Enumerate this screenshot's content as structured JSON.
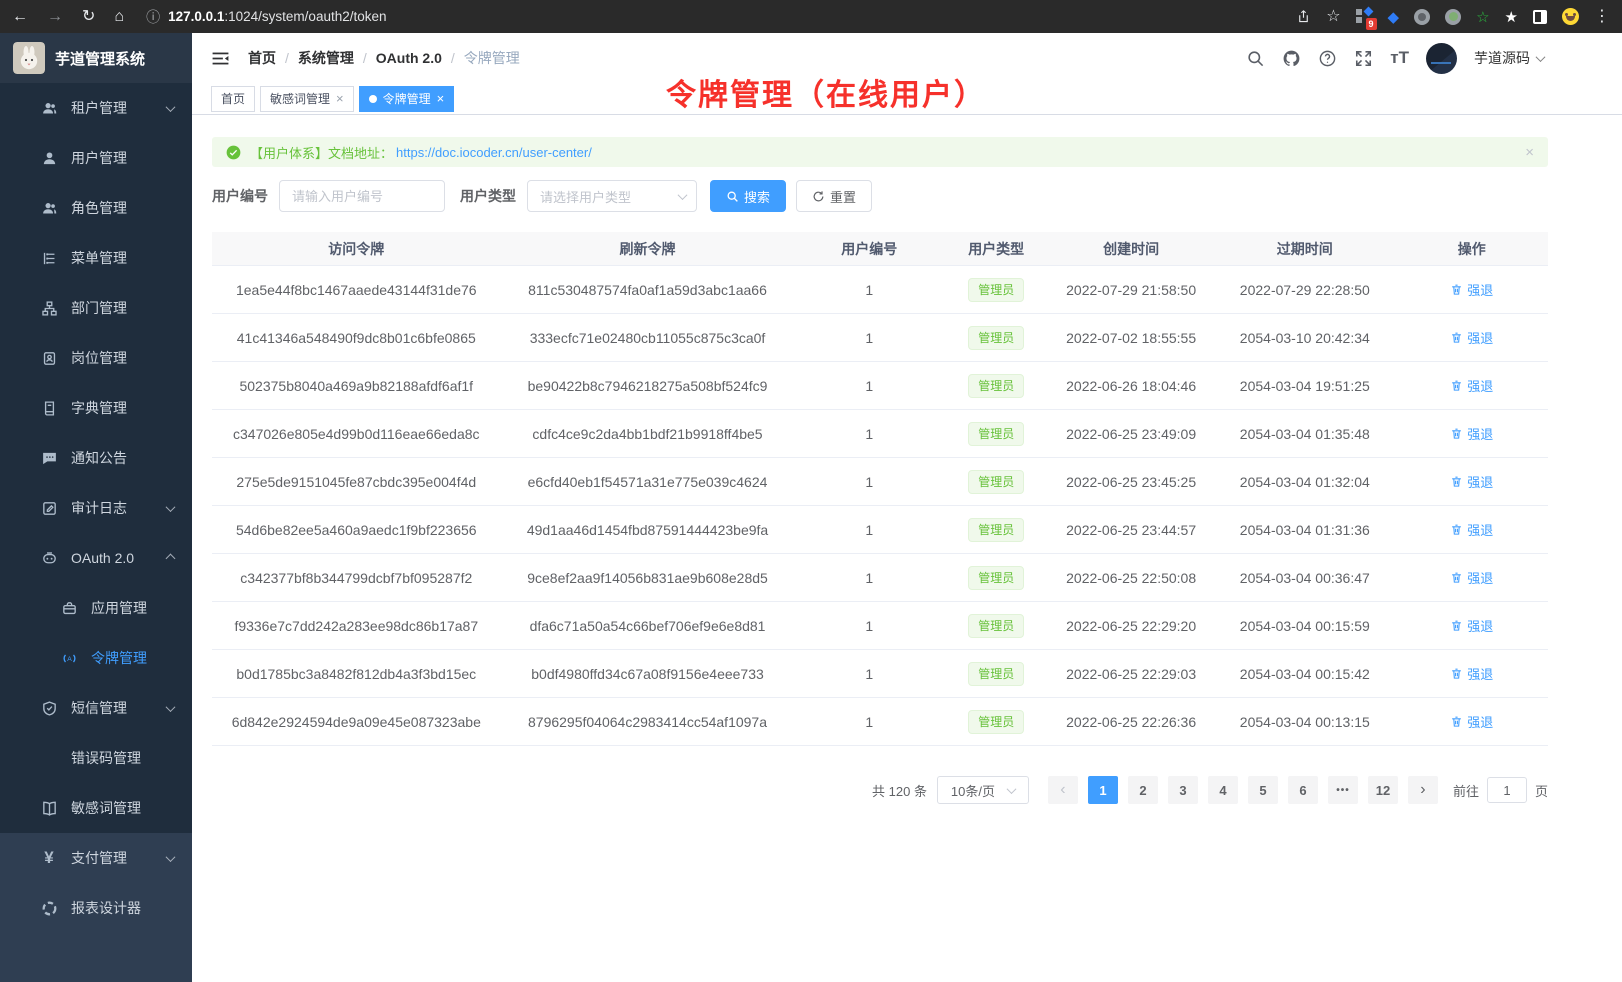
{
  "browser": {
    "url_host": "127.0.0.1",
    "url_rest": ":1024/system/oauth2/token",
    "extension_badge": "9"
  },
  "glyphs": {
    "back": "←",
    "forward": "→",
    "reload": "↻",
    "home": "⌂",
    "info": "ⓘ",
    "star": "☆",
    "menu_dots": "⋮",
    "close": "×",
    "prev": "‹",
    "next": "›",
    "ellipsis": "•••",
    "diamond": "◆",
    "star_green": "☆",
    "star_white": "★",
    "font_size": "тT",
    "code": "</>",
    "yen": "¥"
  },
  "sidebar": {
    "app_title": "芋道管理系统",
    "items": [
      {
        "name": "tenant",
        "label": "租户管理",
        "icon": "users",
        "chevron": "down"
      },
      {
        "name": "user",
        "label": "用户管理",
        "icon": "user"
      },
      {
        "name": "role",
        "label": "角色管理",
        "icon": "users"
      },
      {
        "name": "menu",
        "label": "菜单管理",
        "icon": "menu-tree"
      },
      {
        "name": "dept",
        "label": "部门管理",
        "icon": "org"
      },
      {
        "name": "post",
        "label": "岗位管理",
        "icon": "post"
      },
      {
        "name": "dict",
        "label": "字典管理",
        "icon": "dict"
      },
      {
        "name": "notice",
        "label": "通知公告",
        "icon": "notice"
      },
      {
        "name": "audit-log",
        "label": "审计日志",
        "icon": "audit",
        "chevron": "down"
      },
      {
        "name": "oauth2",
        "label": "OAuth 2.0",
        "icon": "robot",
        "chevron": "up"
      },
      {
        "name": "oauth2-app",
        "label": "应用管理",
        "icon": "briefcase",
        "level": 2
      },
      {
        "name": "oauth2-token",
        "label": "令牌管理",
        "icon": "broadcast",
        "level": 2,
        "active": true
      },
      {
        "name": "sms",
        "label": "短信管理",
        "icon": "shield",
        "chevron": "down"
      },
      {
        "name": "error-code",
        "label": "错误码管理",
        "icon": "code"
      },
      {
        "name": "sensitive-word",
        "label": "敏感词管理",
        "icon": "open-book"
      },
      {
        "name": "pay",
        "label": "支付管理",
        "icon": "yen",
        "chevron": "down",
        "light": true
      },
      {
        "name": "report-designer",
        "label": "报表设计器",
        "icon": "pie",
        "light": true
      }
    ]
  },
  "header": {
    "breadcrumbs": [
      "首页",
      "系统管理",
      "OAuth 2.0",
      "令牌管理"
    ],
    "breadcrumb_separator": "/",
    "user_name": "芋道源码"
  },
  "tabs": [
    {
      "label": "首页",
      "closable": false,
      "active": false
    },
    {
      "label": "敏感词管理",
      "closable": true,
      "active": false
    },
    {
      "label": "令牌管理",
      "closable": true,
      "active": true
    }
  ],
  "annotation": {
    "text": "令牌管理（在线用户）"
  },
  "alert": {
    "prefix": "【用户体系】文档地址：",
    "link": "https://doc.iocoder.cn/user-center/"
  },
  "filters": {
    "user_id_label": "用户编号",
    "user_id_placeholder": "请输入用户编号",
    "user_type_label": "用户类型",
    "user_type_placeholder": "请选择用户类型",
    "search_label": "搜索",
    "reset_label": "重置"
  },
  "table": {
    "columns": [
      "访问令牌",
      "刷新令牌",
      "用户编号",
      "用户类型",
      "创建时间",
      "过期时间",
      "操作"
    ],
    "action_label": "强退",
    "rows": [
      [
        "1ea5e44f8bc1467aaede43144f31de76",
        "811c530487574fa0af1a59d3abc1aa66",
        "1",
        "管理员",
        "2022-07-29 21:58:50",
        "2022-07-29 22:28:50"
      ],
      [
        "41c41346a548490f9dc8b01c6bfe0865",
        "333ecfc71e02480cb11055c875c3ca0f",
        "1",
        "管理员",
        "2022-07-02 18:55:55",
        "2054-03-10 20:42:34"
      ],
      [
        "502375b8040a469a9b82188afdf6af1f",
        "be90422b8c7946218275a508bf524fc9",
        "1",
        "管理员",
        "2022-06-26 18:04:46",
        "2054-03-04 19:51:25"
      ],
      [
        "c347026e805e4d99b0d116eae66eda8c",
        "cdfc4ce9c2da4bb1bdf21b9918ff4be5",
        "1",
        "管理员",
        "2022-06-25 23:49:09",
        "2054-03-04 01:35:48"
      ],
      [
        "275e5de9151045fe87cbdc395e004f4d",
        "e6cfd40eb1f54571a31e775e039c4624",
        "1",
        "管理员",
        "2022-06-25 23:45:25",
        "2054-03-04 01:32:04"
      ],
      [
        "54d6be82ee5a460a9aedc1f9bf223656",
        "49d1aa46d1454fbd87591444423be9fa",
        "1",
        "管理员",
        "2022-06-25 23:44:57",
        "2054-03-04 01:31:36"
      ],
      [
        "c342377bf8b344799dcbf7bf095287f2",
        "9ce8ef2aa9f14056b831ae9b608e28d5",
        "1",
        "管理员",
        "2022-06-25 22:50:08",
        "2054-03-04 00:36:47"
      ],
      [
        "f9336e7c7dd242a283ee98dc86b17a87",
        "dfa6c71a50a54c66bef706ef9e6e8d81",
        "1",
        "管理员",
        "2022-06-25 22:29:20",
        "2054-03-04 00:15:59"
      ],
      [
        "b0d1785bc3a8482f812db4a3f3bd15ec",
        "b0df4980ffd34c67a08f9156e4eee733",
        "1",
        "管理员",
        "2022-06-25 22:29:03",
        "2054-03-04 00:15:42"
      ],
      [
        "6d842e2924594de9a09e45e087323abe",
        "8796295f04064c2983414cc54af1097a",
        "1",
        "管理员",
        "2022-06-25 22:26:36",
        "2054-03-04 00:13:15"
      ]
    ]
  },
  "pagination": {
    "total_text": "共 120 条",
    "page_size": "10条/页",
    "pages": [
      "1",
      "2",
      "3",
      "4",
      "5",
      "6",
      "•••",
      "12"
    ],
    "active_page": "1",
    "goto_label": "前往",
    "goto_value": "1",
    "goto_suffix": "页"
  },
  "colors": {
    "accent": "#409eff",
    "success": "#67c23a",
    "annotation_red": "#f6312b"
  }
}
